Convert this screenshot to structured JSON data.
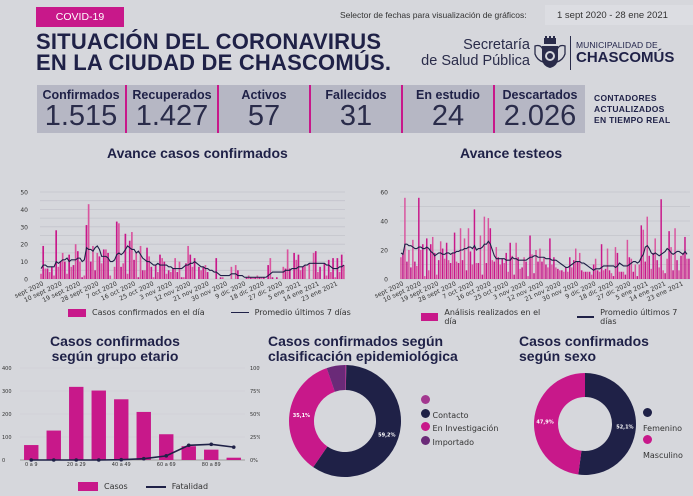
{
  "header": {
    "badge": "COVID-19",
    "title_line1": "SITUACIÓN DEL CORONAVIRUS",
    "title_line2": "EN LA CIUDAD DE CHASCOMÚS.",
    "selector_label": "Selector de fechas para visualización de gráficos:",
    "selector_value": "1 sept 2020 - 28 ene 2021",
    "secretaria_line1": "Secretaría",
    "secretaria_line2": "de Salud Pública",
    "muni_line1": "MUNICIPALIDAD DE",
    "muni_line2": "CHASCOMÚS",
    "realtime_line1": "CONTADORES",
    "realtime_line2": "ACTUALIZADOS",
    "realtime_line3": "EN TIEMPO REAL"
  },
  "counters": [
    {
      "label": "Confirmados",
      "value": "1.515"
    },
    {
      "label": "Recuperados",
      "value": "1.427"
    },
    {
      "label": "Activos",
      "value": "57"
    },
    {
      "label": "Fallecidos",
      "value": "31"
    },
    {
      "label": "En estudio",
      "value": "24"
    },
    {
      "label": "Descartados",
      "value": "2.026"
    }
  ],
  "colors": {
    "magenta": "#c8188a",
    "magenta_light": "#d9559f",
    "navy": "#1f2147",
    "purple": "#6a2a78",
    "purple_light": "#a3378f",
    "background": "#d6d7dc"
  },
  "chart_data": [
    {
      "type": "bar",
      "title": "Avance casos confirmados",
      "xlabel": "",
      "ylabel": "",
      "ylim": [
        0,
        50
      ],
      "yticks": [
        "0",
        "10",
        "20",
        "30",
        "40",
        "50"
      ],
      "xticks": [
        "sept 2020",
        "10 sept 2020",
        "19 sept 2020",
        "28 sept 2020",
        "7 oct 2020",
        "16 oct 2020",
        "25 oct 2020",
        "3 nov 2020",
        "12 nov 2020",
        "21 nov 2020",
        "30 nov 2020",
        "9 dic 2020",
        "18 dic 2020",
        "27 dic 2020",
        "5 ene 2021",
        "14 ene 2021",
        "23 ene 2021"
      ],
      "legend": [
        "Casos confirmados en el día",
        "Promedio últimos 7 días"
      ],
      "series": [
        {
          "name": "Casos confirmados en el día",
          "values": [
            3,
            19,
            6,
            6,
            4,
            7,
            2,
            28,
            7,
            10,
            15,
            10,
            3,
            14,
            7,
            8,
            20,
            16,
            10,
            1,
            2,
            31,
            43,
            10,
            19,
            5,
            15,
            13,
            9,
            17,
            17,
            15,
            2,
            0,
            7,
            33,
            32,
            7,
            9,
            26,
            3,
            22,
            27,
            11,
            15,
            1,
            19,
            5,
            5,
            18,
            13,
            7,
            1,
            8,
            4,
            14,
            12,
            10,
            3,
            5,
            4,
            6,
            12,
            4,
            10,
            1,
            1,
            9,
            19,
            14,
            7,
            12,
            0,
            7,
            5,
            7,
            8,
            4,
            0,
            0,
            0,
            12,
            0,
            1,
            1,
            0,
            0,
            0,
            7,
            0,
            8,
            5,
            0,
            0,
            0,
            1,
            2,
            1,
            1,
            1,
            2,
            1,
            1,
            1,
            0,
            8,
            12,
            1,
            0,
            1,
            0,
            0,
            7,
            6,
            17,
            6,
            0,
            15,
            11,
            14,
            5,
            7,
            8,
            0,
            9,
            0,
            15,
            16,
            4,
            7,
            0,
            9,
            2,
            11,
            4,
            12,
            1,
            12,
            4,
            14,
            8
          ]
        },
        {
          "name": "Promedio últimos 7 días",
          "values": [
            6,
            8,
            8,
            7,
            7,
            7,
            7,
            10,
            9,
            10,
            11,
            11,
            12,
            10,
            11,
            11,
            11,
            12,
            12,
            10,
            11,
            18,
            17,
            17,
            16,
            18,
            19,
            17,
            13,
            13,
            13,
            12,
            10,
            10,
            11,
            14,
            15,
            14,
            15,
            17,
            19,
            18,
            17,
            17,
            15,
            16,
            14,
            12,
            11,
            10,
            10,
            9,
            8,
            8,
            9,
            8,
            8,
            8,
            8,
            7,
            7,
            6,
            6,
            6,
            6,
            6,
            7,
            8,
            8,
            9,
            9,
            10,
            9,
            8,
            7,
            7,
            6,
            6,
            5,
            5,
            4,
            4,
            3,
            2,
            2,
            2,
            2,
            2,
            3,
            3,
            3,
            2,
            2,
            2,
            1,
            1,
            1,
            1,
            1,
            1,
            1,
            1,
            1,
            1,
            1,
            2,
            3,
            4,
            4,
            4,
            4,
            4,
            4,
            5,
            5,
            5,
            6,
            6,
            6,
            7,
            7,
            7,
            8,
            8,
            9,
            9,
            9,
            9,
            9,
            9,
            9,
            9,
            8,
            8,
            7,
            6,
            6,
            6,
            7,
            7,
            8
          ]
        }
      ]
    },
    {
      "type": "bar",
      "title": "Avance testeos",
      "xlabel": "",
      "ylabel": "",
      "ylim": [
        0,
        60
      ],
      "yticks": [
        "0",
        "20",
        "40",
        "60"
      ],
      "xticks": [
        "sept 2020",
        "10 sept 2020",
        "19 sept 2020",
        "28 sept 2020",
        "7 oct 2020",
        "16 oct 2020",
        "25 oct 2020",
        "3 nov 2020",
        "12 nov 2020",
        "21 nov 2020",
        "30 nov 2020",
        "9 dic 2020",
        "18 dic 2020",
        "27 dic 2020",
        "5 ene 2021",
        "14 ene 2021",
        "23 ene 2021"
      ],
      "legend": [
        "Análisis realizados en el día",
        "Promedio últimos 7 días"
      ],
      "series": [
        {
          "name": "Análisis realizados en el día",
          "values": [
            15,
            18,
            56,
            12,
            20,
            8,
            27,
            12,
            9,
            56,
            20,
            24,
            2,
            28,
            6,
            24,
            29,
            18,
            3,
            13,
            26,
            21,
            14,
            25,
            13,
            11,
            18,
            32,
            12,
            11,
            35,
            13,
            28,
            6,
            35,
            19,
            10,
            48,
            11,
            11,
            30,
            3,
            43,
            11,
            42,
            35,
            13,
            12,
            22,
            15,
            10,
            14,
            11,
            18,
            5,
            25,
            16,
            3,
            25,
            15,
            7,
            8,
            15,
            12,
            2,
            30,
            17,
            4,
            20,
            12,
            21,
            12,
            15,
            10,
            8,
            28,
            10,
            15,
            8,
            7,
            6,
            6,
            5,
            8,
            5,
            15,
            8,
            13,
            21,
            12,
            18,
            6,
            5,
            5,
            5,
            5,
            3,
            10,
            14,
            6,
            5,
            24,
            6,
            7,
            21,
            6,
            4,
            2,
            22,
            18,
            5,
            5,
            5,
            3,
            27,
            15,
            14,
            5,
            10,
            2,
            10,
            37,
            34,
            12,
            43,
            16,
            7,
            18,
            28,
            13,
            8,
            55,
            6,
            4,
            14,
            33,
            22,
            6,
            35,
            13,
            6,
            16,
            18,
            29,
            14,
            14
          ]
        },
        {
          "name": "Promedio últimos 7 días",
          "values": [
            18,
            17,
            24,
            24,
            23,
            23,
            22,
            21,
            21,
            22,
            22,
            21,
            21,
            22,
            21,
            19,
            18,
            16,
            17,
            18,
            18,
            17,
            17,
            18,
            18,
            17,
            18,
            18,
            19,
            19,
            20,
            20,
            21,
            21,
            22,
            22,
            21,
            23,
            20,
            21,
            21,
            22,
            24,
            24,
            26,
            24,
            20,
            16,
            14,
            14,
            14,
            14,
            14,
            13,
            13,
            13,
            15,
            14,
            14,
            13,
            13,
            13,
            13,
            13,
            14,
            15,
            15,
            16,
            16,
            15,
            15,
            15,
            15,
            14,
            14,
            14,
            13,
            13,
            13,
            12,
            11,
            10,
            9,
            8,
            8,
            9,
            10,
            11,
            12,
            12,
            12,
            11,
            11,
            10,
            9,
            8,
            7,
            6,
            7,
            7,
            7,
            8,
            9,
            9,
            9,
            9,
            9,
            9,
            8,
            9,
            11,
            10,
            9,
            9,
            9,
            10,
            11,
            12,
            12,
            11,
            12,
            15,
            17,
            22,
            23,
            21,
            18,
            17,
            18,
            17,
            16,
            17,
            18,
            19,
            21,
            20,
            18,
            17,
            18,
            19,
            19,
            18,
            17,
            19,
            17
          ]
        }
      ]
    },
    {
      "type": "bar",
      "title": "Casos confirmados según grupo etario",
      "categories": [
        "0 a 9",
        "10 a 19",
        "20 a 29",
        "30 a 39",
        "40 a 49",
        "50 a 59",
        "60 a 69",
        "70 a 79",
        "80 a 89",
        "90 o más"
      ],
      "ylim": [
        0,
        400
      ],
      "yticks": [
        "0",
        "100",
        "200",
        "300",
        "400"
      ],
      "y2lim": [
        0,
        100
      ],
      "y2ticks": [
        "0%",
        "25%",
        "50%",
        "75%",
        "100%"
      ],
      "legend": [
        "Casos",
        "Fatalidad"
      ],
      "series": [
        {
          "name": "Casos",
          "values": [
            65,
            128,
            318,
            302,
            264,
            209,
            112,
            60,
            45,
            10
          ]
        },
        {
          "name": "Fatalidad",
          "values": [
            0,
            0,
            0,
            0,
            0.3,
            1.4,
            4.5,
            16,
            17,
            14
          ]
        }
      ]
    },
    {
      "type": "pie",
      "title": "Casos confirmados según clasificación epidemiológica",
      "legend": [
        "",
        "Contacto",
        "En Investigación",
        "Importado"
      ],
      "labels": [
        "",
        "Contacto",
        "En Investigación",
        "Importado"
      ],
      "values": [
        0.4,
        59.2,
        35.1,
        5.3
      ],
      "data_labels": [
        "",
        "59,2%",
        "35,1%",
        ""
      ],
      "colors": [
        "#a3378f",
        "#1f2147",
        "#c8188a",
        "#6a2a78"
      ]
    },
    {
      "type": "pie",
      "title": "Casos confirmados según sexo",
      "legend": [
        "Femenino",
        "Masculino"
      ],
      "labels": [
        "Femenino",
        "Masculino"
      ],
      "values": [
        52.1,
        47.9
      ],
      "data_labels": [
        "52,1%",
        "47,9%"
      ],
      "colors": [
        "#1f2147",
        "#c8188a"
      ]
    }
  ]
}
